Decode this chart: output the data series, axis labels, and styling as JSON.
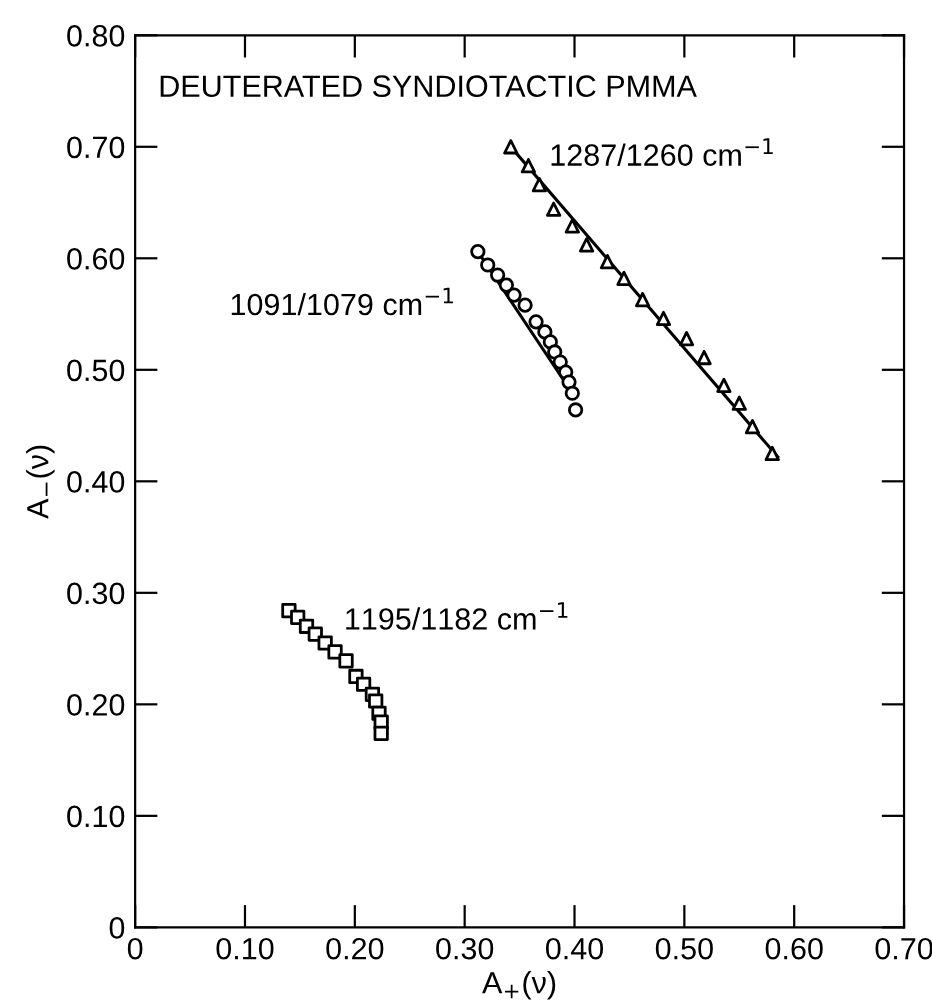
{
  "chart_data": {
    "type": "scatter",
    "xlabel": "A$_{+}$(ν)",
    "ylabel": "A$_{−}$(ν)",
    "annotations": [
      "DEUTERATED SYNDIOTACTIC PMMA"
    ],
    "xlim": [
      0,
      0.7
    ],
    "ylim": [
      0,
      0.8
    ],
    "xticks": [
      0,
      {
        "value": 0.1,
        "label": "0.10"
      },
      {
        "value": 0.2,
        "label": "0.20"
      },
      {
        "value": 0.3,
        "label": "0.30"
      },
      {
        "value": 0.4,
        "label": "0.40"
      },
      {
        "value": 0.5,
        "label": "0.50"
      },
      {
        "value": 0.6,
        "label": "0.60"
      },
      {
        "value": 0.7,
        "label": "0.70"
      }
    ],
    "yticks": [
      0,
      {
        "value": 0.1,
        "label": "0.10"
      },
      {
        "value": 0.2,
        "label": "0.20"
      },
      {
        "value": 0.3,
        "label": "0.30"
      },
      {
        "value": 0.4,
        "label": "0.40"
      },
      {
        "value": 0.5,
        "label": "0.50"
      },
      {
        "value": 0.6,
        "label": "0.60"
      },
      {
        "value": 0.7,
        "label": "0.70"
      },
      {
        "value": 0.8,
        "label": "0.80"
      }
    ],
    "grid": false,
    "legend": false,
    "series": [
      {
        "name": "1287/1260 cm$^{−1}$",
        "color": "#000000",
        "marker": "triangle",
        "x": [
          0.342,
          0.358,
          0.368,
          0.381,
          0.398,
          0.411,
          0.43,
          0.445,
          0.462,
          0.481,
          0.502,
          0.518,
          0.536,
          0.55,
          0.562,
          0.58
        ],
        "values": [
          0.7,
          0.683,
          0.666,
          0.644,
          0.629,
          0.612,
          0.597,
          0.582,
          0.563,
          0.546,
          0.528,
          0.511,
          0.486,
          0.47,
          0.449,
          0.425
        ]
      },
      {
        "type": "line",
        "color": "#000000",
        "marker": "none",
        "line_style": "solid",
        "x": [
          0.342,
          0.585
        ],
        "values": [
          0.7,
          0.422
        ]
      },
      {
        "name": "1091/1079 cm$^{−1}$",
        "color": "#000000",
        "marker": "circle",
        "x": [
          0.312,
          0.321,
          0.33,
          0.338,
          0.345,
          0.355,
          0.365,
          0.373,
          0.378,
          0.382,
          0.387,
          0.392,
          0.395,
          0.398,
          0.401
        ],
        "values": [
          0.606,
          0.594,
          0.585,
          0.576,
          0.567,
          0.558,
          0.543,
          0.534,
          0.525,
          0.516,
          0.507,
          0.498,
          0.489,
          0.479,
          0.464
        ]
      },
      {
        "type": "line",
        "color": "#000000",
        "marker": "none",
        "line_style": "solid",
        "x": [
          0.312,
          0.398
        ],
        "values": [
          0.606,
          0.479
        ]
      },
      {
        "name": "1195/1182 cm$^{−1}$",
        "color": "#000000",
        "marker": "square",
        "x": [
          0.14,
          0.148,
          0.156,
          0.164,
          0.173,
          0.182,
          0.192,
          0.201,
          0.208,
          0.216,
          0.219,
          0.222,
          0.224,
          0.224
        ],
        "values": [
          0.284,
          0.278,
          0.27,
          0.263,
          0.255,
          0.247,
          0.239,
          0.225,
          0.218,
          0.209,
          0.203,
          0.192,
          0.184,
          0.174
        ]
      }
    ]
  }
}
